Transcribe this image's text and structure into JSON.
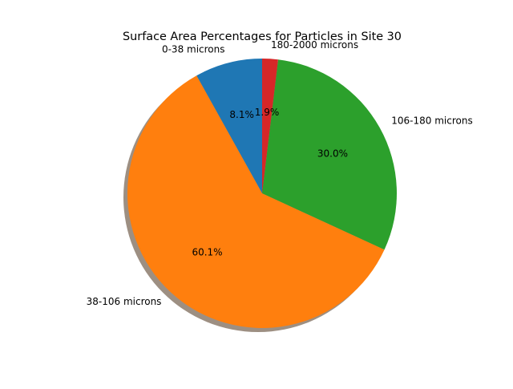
{
  "chart_data": {
    "type": "pie",
    "title": "Surface Area Percentages for Particles in Site 30",
    "categories": [
      "0-38 microns",
      "38-106 microns",
      "106-180 microns",
      "180-2000 microns"
    ],
    "values": [
      8.1,
      60.1,
      30.0,
      1.9
    ],
    "value_labels": [
      "8.1%",
      "60.1%",
      "30.0%",
      "1.9%"
    ],
    "colors": [
      "#1f77b4",
      "#ff7f0e",
      "#2ca02c",
      "#d62728"
    ],
    "start_angle_deg": 90,
    "direction": "counterclockwise",
    "shadow": true,
    "legend": "none"
  }
}
